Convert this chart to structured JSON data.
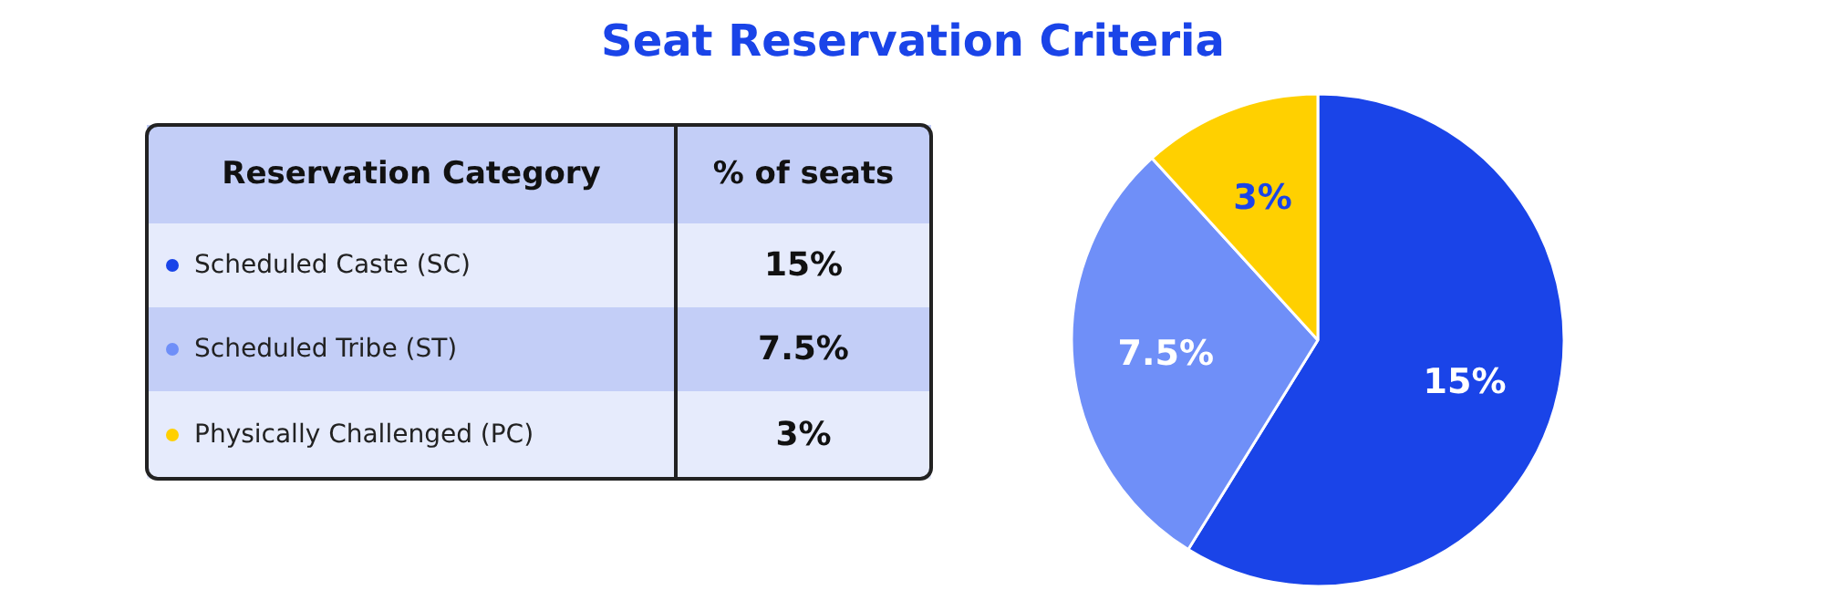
{
  "chart_data": {
    "type": "pie",
    "title": "Seat Reservation Criteria",
    "categories": [
      "Scheduled Caste (SC)",
      "Scheduled Tribe (ST)",
      "Physically Challenged (PC)"
    ],
    "values": [
      15,
      7.5,
      3
    ],
    "colors": [
      "#1a44e8",
      "#6f8ff8",
      "#ffd000"
    ],
    "value_labels": [
      "15%",
      "7.5%",
      "3%"
    ],
    "legend": "left",
    "legend_title": "Reservation Category",
    "annotations": [
      "% of seats"
    ]
  }
}
